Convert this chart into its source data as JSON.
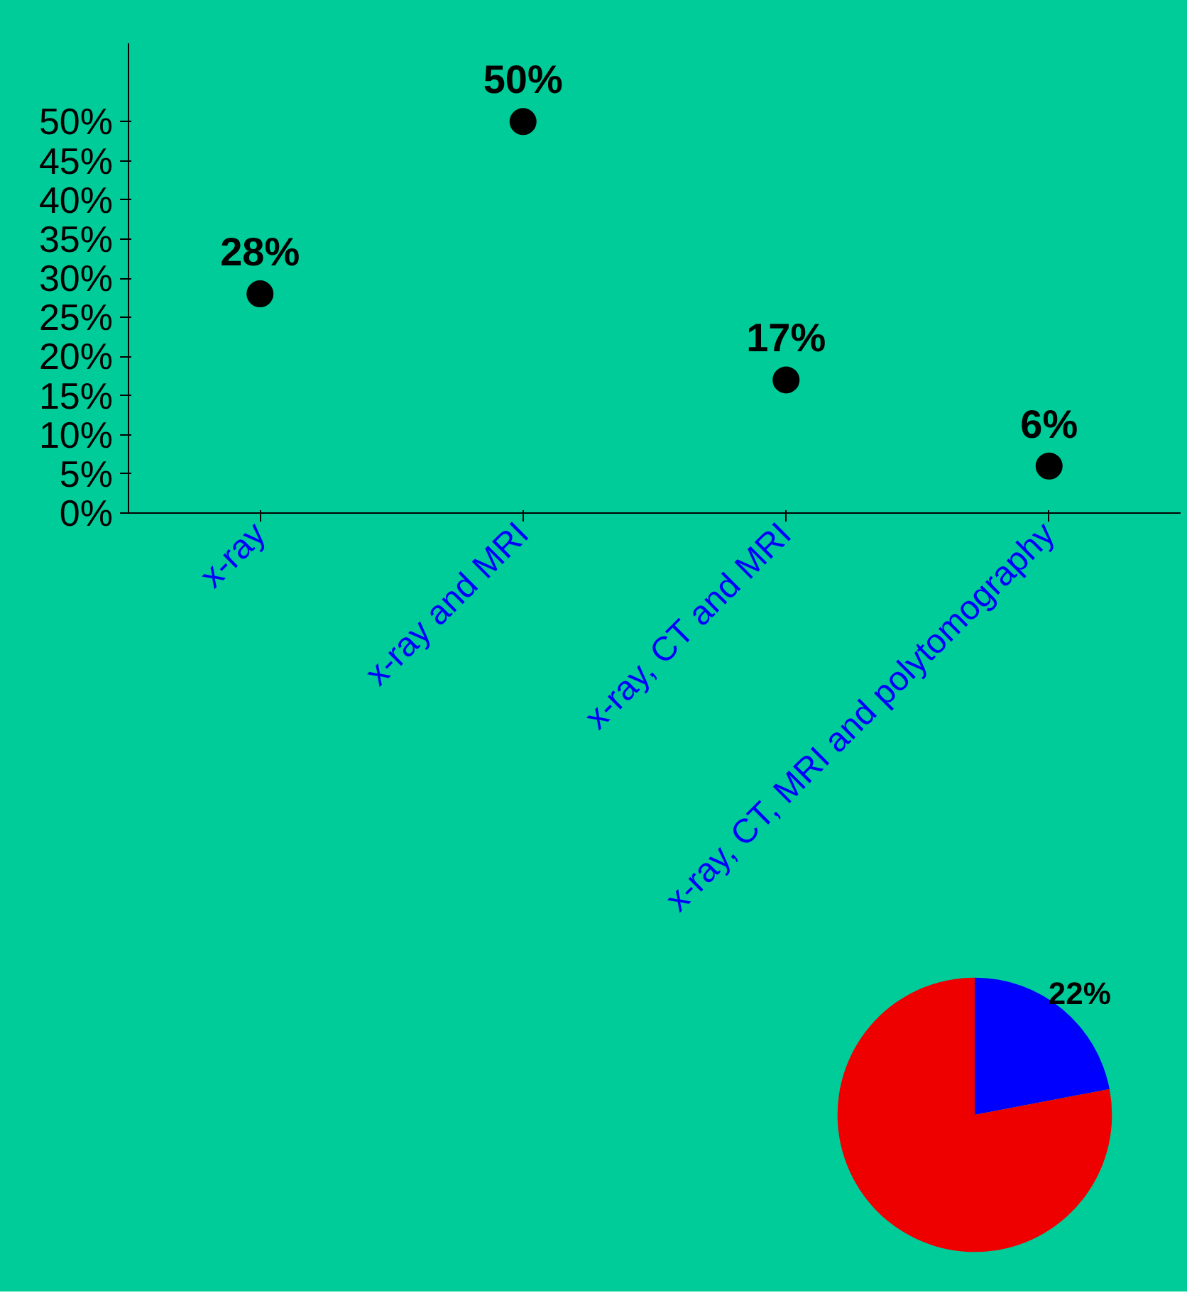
{
  "chart_data": [
    {
      "type": "scatter",
      "categories": [
        "x-ray",
        "x-ray and MRI",
        "x-ray, CT and MRI",
        "x-ray, CT, MRI and polytomography"
      ],
      "series": [
        {
          "color": "#000000",
          "values": [
            28,
            50,
            17,
            6
          ]
        }
      ],
      "ylim": [
        0,
        60
      ],
      "yticks": [
        {
          "value": 0,
          "label": "0%"
        },
        {
          "value": 5,
          "label": "5%"
        },
        {
          "value": 10,
          "label": "10%"
        },
        {
          "value": 15,
          "label": "15%"
        },
        {
          "value": 20,
          "label": "20%"
        },
        {
          "value": 25,
          "label": "25%"
        },
        {
          "value": 30,
          "label": "30%"
        },
        {
          "value": 35,
          "label": "35%"
        },
        {
          "value": 40,
          "label": "40%"
        },
        {
          "value": 45,
          "label": "45%"
        },
        {
          "value": 50,
          "label": "50%"
        }
      ],
      "value_labels": [
        "28%",
        "50%",
        "17%",
        "6%"
      ],
      "marker": "circle",
      "grid": false
    },
    {
      "type": "pie",
      "categories": [
        null,
        null
      ],
      "values": [
        22,
        78
      ],
      "colors": [
        "#0000ff",
        "#ee0000"
      ],
      "value_labels": [
        "22%",
        null
      ]
    }
  ]
}
